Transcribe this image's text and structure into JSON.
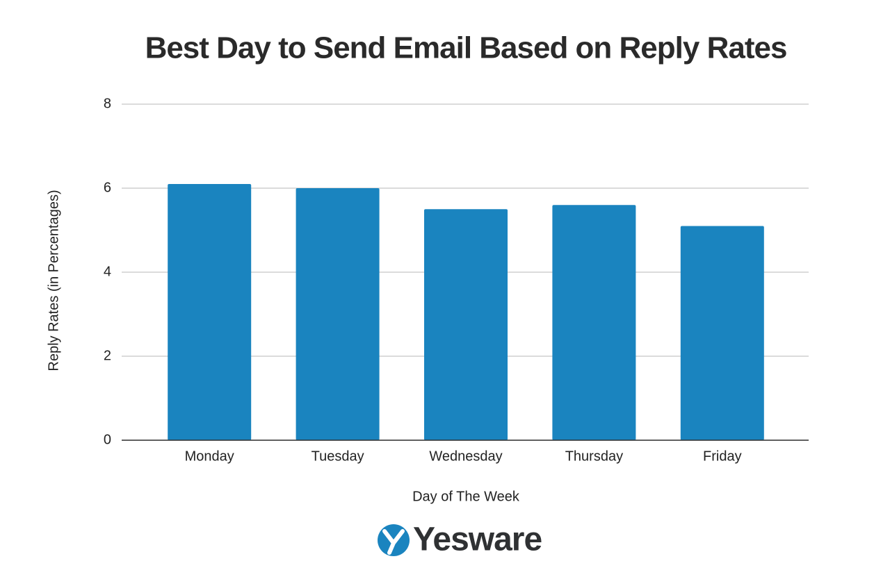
{
  "chart_data": {
    "type": "bar",
    "title": "Best Day to Send Email Based on Reply Rates",
    "categories": [
      "Monday",
      "Tuesday",
      "Wednesday",
      "Thursday",
      "Friday"
    ],
    "values": [
      6.1,
      6.0,
      5.5,
      5.6,
      5.1
    ],
    "color": "#1a84bf",
    "xlabel": "Day of The Week",
    "ylabel": "Reply Rates (in Percentages)",
    "ylim": [
      0,
      8
    ],
    "yticks": [
      0,
      2,
      4,
      6,
      8
    ],
    "grid": true
  },
  "logo": {
    "text": "Yesware"
  }
}
